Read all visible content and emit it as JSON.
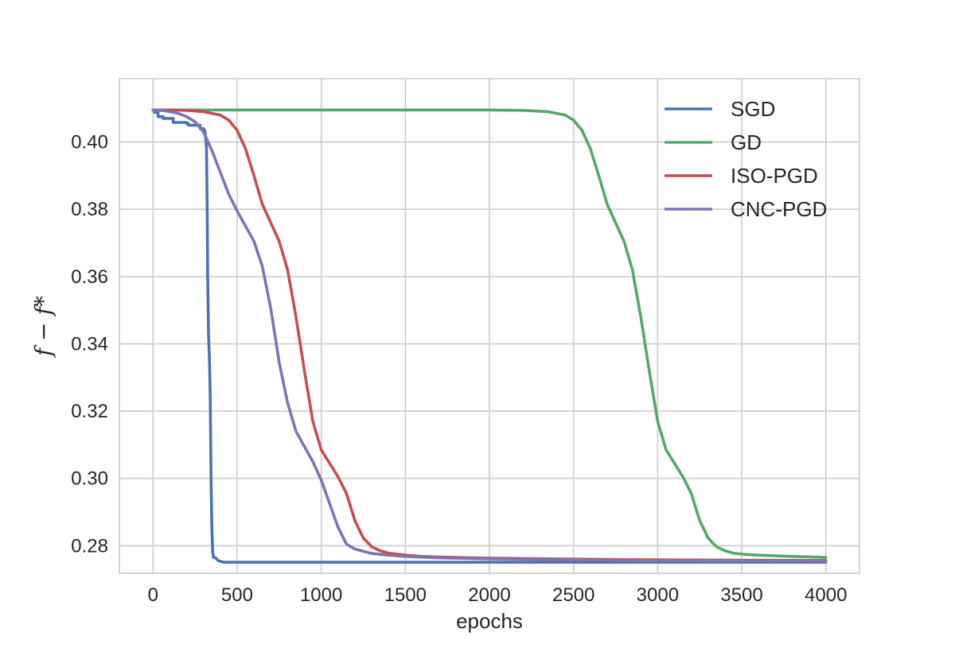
{
  "chart_data": {
    "type": "line",
    "xlabel": "epochs",
    "ylabel": "f − f*",
    "xlim": [
      -200,
      4200
    ],
    "ylim": [
      0.2718,
      0.4188
    ],
    "x_ticks": [
      0,
      500,
      1000,
      1500,
      2000,
      2500,
      3000,
      3500,
      4000
    ],
    "y_ticks": [
      0.28,
      0.3,
      0.32,
      0.34,
      0.36,
      0.38,
      0.4
    ],
    "x_tick_labels": [
      "0",
      "500",
      "1000",
      "1500",
      "2000",
      "2500",
      "3000",
      "3500",
      "4000"
    ],
    "y_tick_labels": [
      "0.28",
      "0.30",
      "0.32",
      "0.34",
      "0.36",
      "0.38",
      "0.40"
    ],
    "grid": true,
    "legend_position": "top-right",
    "series": [
      {
        "name": "SGD",
        "color": "#4c72b0",
        "x": [
          0,
          10,
          10,
          30,
          30,
          60,
          60,
          120,
          120,
          200,
          200,
          210,
          210,
          280,
          280,
          300,
          310,
          318,
          322,
          325,
          330,
          335,
          340,
          345,
          350,
          355,
          360,
          370,
          390,
          420,
          500,
          1000,
          2000,
          3000,
          4000
        ],
        "y": [
          0.4095,
          0.4095,
          0.4088,
          0.4088,
          0.4075,
          0.4075,
          0.407,
          0.407,
          0.4058,
          0.4058,
          0.4055,
          0.4055,
          0.405,
          0.405,
          0.404,
          0.404,
          0.403,
          0.398,
          0.38,
          0.36,
          0.343,
          0.336,
          0.325,
          0.3,
          0.285,
          0.278,
          0.2765,
          0.2765,
          0.2755,
          0.2751,
          0.2751,
          0.2751,
          0.2751,
          0.2751,
          0.2751
        ]
      },
      {
        "name": "GD",
        "color": "#55a868",
        "x": [
          0,
          500,
          1000,
          1500,
          2000,
          2200,
          2350,
          2450,
          2500,
          2550,
          2600,
          2650,
          2700,
          2750,
          2800,
          2850,
          2900,
          2950,
          3000,
          3050,
          3100,
          3150,
          3200,
          3250,
          3300,
          3350,
          3400,
          3450,
          3500,
          3600,
          3700,
          3800,
          3900,
          4000
        ],
        "y": [
          0.4095,
          0.4095,
          0.4095,
          0.4095,
          0.4095,
          0.4094,
          0.409,
          0.408,
          0.4065,
          0.4035,
          0.398,
          0.39,
          0.3815,
          0.376,
          0.3705,
          0.362,
          0.348,
          0.332,
          0.317,
          0.3085,
          0.3045,
          0.3005,
          0.2955,
          0.2875,
          0.2823,
          0.2797,
          0.2785,
          0.2778,
          0.2775,
          0.2772,
          0.277,
          0.2768,
          0.2767,
          0.2765
        ]
      },
      {
        "name": "ISO-PGD",
        "color": "#c44e52",
        "x": [
          0,
          100,
          200,
          300,
          400,
          450,
          500,
          550,
          600,
          650,
          700,
          750,
          800,
          850,
          900,
          950,
          1000,
          1050,
          1100,
          1150,
          1200,
          1250,
          1300,
          1350,
          1400,
          1500,
          1600,
          1800,
          2000,
          2500,
          3000,
          3500,
          4000
        ],
        "y": [
          0.4095,
          0.4095,
          0.4094,
          0.409,
          0.408,
          0.4065,
          0.4035,
          0.398,
          0.39,
          0.3815,
          0.376,
          0.3705,
          0.362,
          0.348,
          0.332,
          0.317,
          0.3085,
          0.3045,
          0.3005,
          0.2955,
          0.2875,
          0.2823,
          0.2797,
          0.2785,
          0.2778,
          0.2772,
          0.2768,
          0.2765,
          0.2763,
          0.276,
          0.2758,
          0.2757,
          0.2756
        ]
      },
      {
        "name": "CNC-PGD",
        "color": "#8172b2",
        "x": [
          0,
          50,
          100,
          150,
          200,
          250,
          300,
          350,
          400,
          450,
          500,
          550,
          600,
          650,
          700,
          750,
          800,
          850,
          900,
          950,
          1000,
          1050,
          1100,
          1150,
          1200,
          1300,
          1400,
          1500,
          1700,
          2000,
          2500,
          3000,
          3500,
          4000
        ],
        "y": [
          0.4095,
          0.4094,
          0.409,
          0.4085,
          0.4075,
          0.406,
          0.403,
          0.3975,
          0.391,
          0.3845,
          0.3795,
          0.375,
          0.3705,
          0.363,
          0.3505,
          0.3345,
          0.3225,
          0.314,
          0.3095,
          0.305,
          0.2995,
          0.2925,
          0.2855,
          0.2805,
          0.279,
          0.2777,
          0.2772,
          0.2768,
          0.2764,
          0.2761,
          0.2758,
          0.2756,
          0.2755,
          0.2754
        ]
      }
    ]
  }
}
